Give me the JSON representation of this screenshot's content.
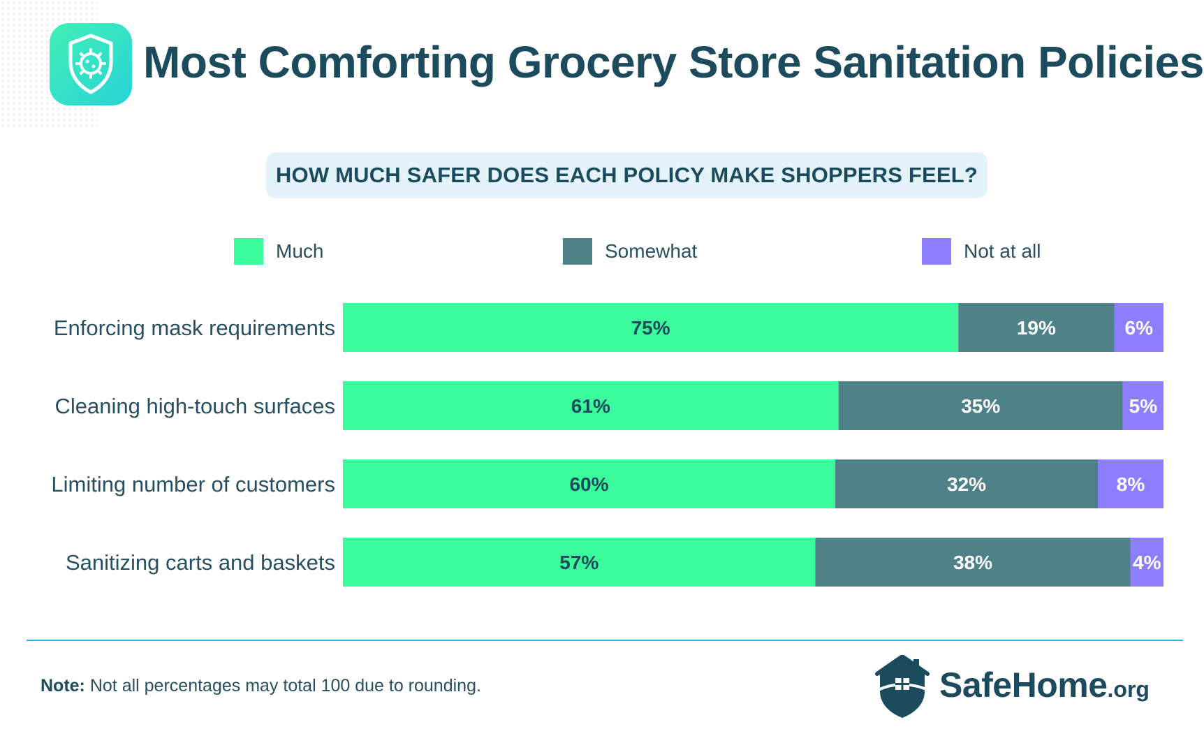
{
  "title": "Most Comforting Grocery Store Sanitation Policies",
  "question": "HOW MUCH SAFER DOES EACH POLICY MAKE SHOPPERS FEEL?",
  "legend": [
    {
      "label": "Much",
      "color": "#3afc9c"
    },
    {
      "label": "Somewhat",
      "color": "#4f8189"
    },
    {
      "label": "Not at all",
      "color": "#8d7efe"
    }
  ],
  "chart_data": {
    "type": "bar",
    "orientation": "horizontal",
    "stacked": true,
    "categories": [
      "Enforcing mask requirements",
      "Cleaning high-touch surfaces",
      "Limiting number of customers",
      "Sanitizing carts and baskets"
    ],
    "series": [
      {
        "name": "Much",
        "values": [
          75,
          61,
          60,
          57
        ],
        "labels": [
          "75%",
          "61%",
          "60%",
          "57%"
        ],
        "color": "#3afc9c"
      },
      {
        "name": "Somewhat",
        "values": [
          19,
          35,
          32,
          38
        ],
        "labels": [
          "19%",
          "35%",
          "32%",
          "38%"
        ],
        "color": "#4f8189"
      },
      {
        "name": "Not at all",
        "values": [
          6,
          5,
          8,
          4
        ],
        "labels": [
          "6%",
          "5%",
          "8%",
          "4%"
        ],
        "color": "#8d7efe"
      }
    ],
    "grid": false,
    "legend_position": "top"
  },
  "note": {
    "label": "Note:",
    "text": "Not all percentages may total 100 due to rounding."
  },
  "logo": {
    "name": "SafeHome",
    "tld": ".org",
    "icon": "house-shield-icon"
  },
  "header_icon": "shield-virus-icon"
}
